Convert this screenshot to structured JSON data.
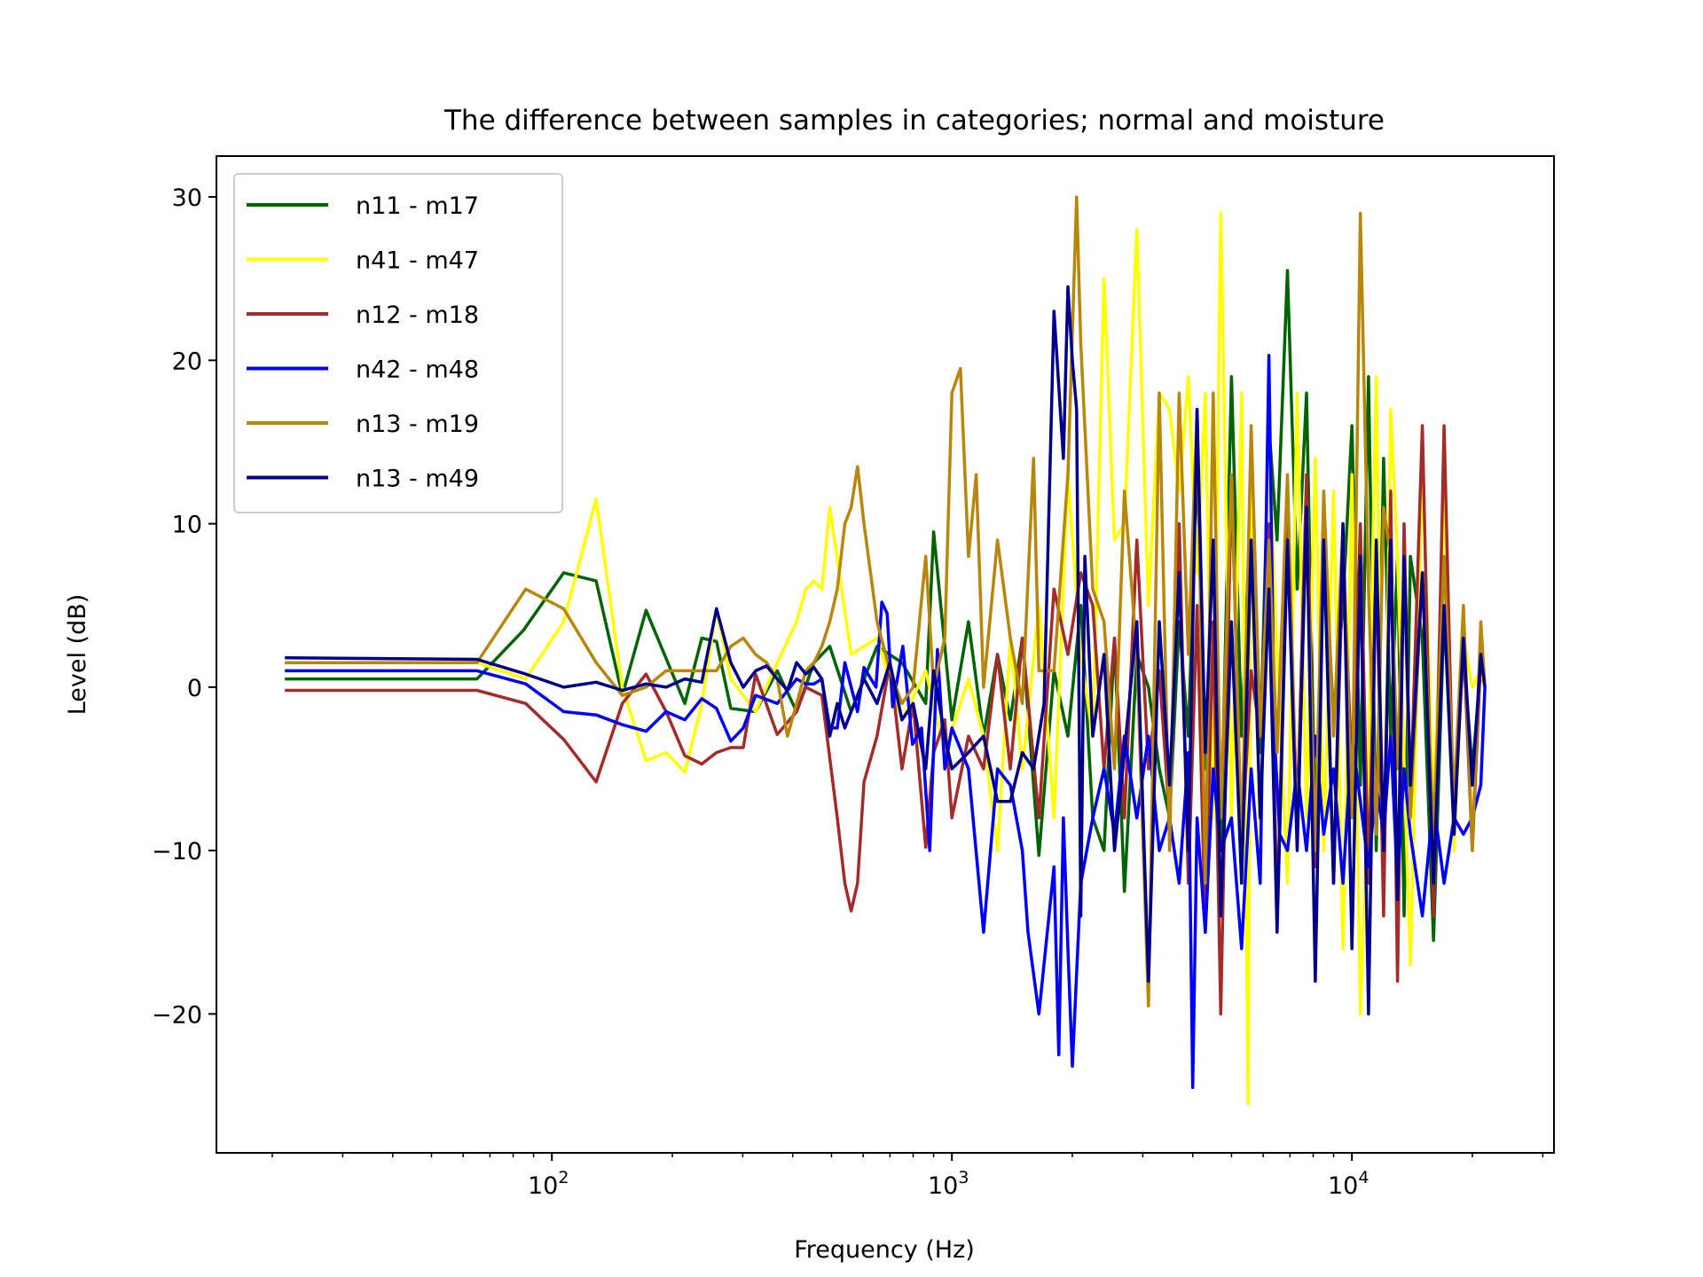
{
  "chart_data": {
    "type": "line",
    "title": "The difference between samples in categories; normal and moisture",
    "xlabel": "Frequency (Hz)",
    "ylabel": "Level (dB)",
    "xscale": "log",
    "xlim": [
      14.5,
      32000
    ],
    "ylim": [
      -28.5,
      32.5
    ],
    "xticks_major": [
      {
        "base": "10",
        "exp": "2"
      },
      {
        "base": "10",
        "exp": "3"
      },
      {
        "base": "10",
        "exp": "4"
      }
    ],
    "yticks": [
      30,
      20,
      10,
      0,
      -10,
      -20
    ],
    "ytick_labels": [
      "30",
      "20",
      "10",
      "0",
      "−10",
      "−20"
    ],
    "grid": false,
    "legend": "upper left",
    "series": [
      {
        "name": "n11 - m17",
        "color": "#006400",
        "x": [
          21.5,
          65,
          85,
          107,
          129,
          150,
          172,
          215,
          237,
          258,
          280,
          323,
          366,
          409,
          452,
          495,
          560,
          650,
          750,
          860,
          900,
          1000,
          1100,
          1200,
          1300,
          1400,
          1500,
          1650,
          1800,
          1950,
          2100,
          2250,
          2400,
          2550,
          2700,
          2900,
          3100,
          3300,
          3500,
          3700,
          3900,
          4100,
          4300,
          4500,
          4700,
          5000,
          5300,
          5600,
          5900,
          6200,
          6500,
          6900,
          7300,
          7700,
          8100,
          8500,
          9000,
          9500,
          10000,
          10500,
          11000,
          11500,
          12000,
          12500,
          13000,
          13500,
          14000,
          15000,
          16000,
          17000,
          18000,
          19000,
          20000,
          21000,
          21500
        ],
        "y": [
          0.5,
          0.5,
          3.5,
          7,
          6.5,
          -0.5,
          4.7,
          -1,
          3,
          2.8,
          -1.3,
          -1.5,
          1,
          -1.5,
          1.5,
          2.5,
          -1.5,
          2.5,
          1.5,
          -1,
          9.5,
          -2,
          4,
          -3,
          2,
          -2,
          3,
          -10.3,
          1,
          -3,
          5,
          -8,
          -10,
          3,
          -12.5,
          2,
          0,
          -5,
          -8,
          4,
          -3,
          14,
          -5,
          2,
          -10,
          19,
          -3,
          12,
          -4,
          16,
          9,
          25.5,
          6,
          18,
          -9,
          10,
          -2,
          5,
          16,
          -6,
          19,
          -10,
          14,
          -3,
          8,
          -14,
          8,
          3,
          -15.5,
          4.5,
          -7,
          2,
          -5,
          1,
          0
        ]
      },
      {
        "name": "n41 - m47",
        "color": "#ffff00",
        "x": [
          21.5,
          65,
          86,
          107,
          129,
          150,
          172,
          193,
          215,
          237,
          258,
          280,
          323,
          366,
          409,
          431,
          452,
          473,
          495,
          560,
          650,
          750,
          860,
          960,
          1100,
          1200,
          1300,
          1400,
          1500,
          1650,
          1800,
          1950,
          2100,
          2250,
          2400,
          2550,
          2700,
          2900,
          3100,
          3300,
          3500,
          3700,
          3900,
          4100,
          4300,
          4500,
          4700,
          5000,
          5300,
          5500,
          5600,
          5900,
          6200,
          6500,
          6900,
          7300,
          7700,
          8100,
          8500,
          9000,
          9500,
          10000,
          10500,
          11000,
          11500,
          12000,
          12500,
          13000,
          14000,
          15000,
          16000,
          17000,
          18000,
          19000,
          20000,
          21000,
          21500
        ],
        "y": [
          1.5,
          1.5,
          0.5,
          4,
          11.5,
          0,
          -4.5,
          -4,
          -5.2,
          -1,
          4.8,
          0.5,
          -1.5,
          1.5,
          4,
          6,
          6.5,
          6,
          11,
          2,
          3,
          -2,
          1,
          -4,
          0.5,
          -3,
          -10,
          3,
          -5,
          5,
          -8,
          13,
          2,
          -3,
          25,
          9,
          10,
          28,
          5,
          18,
          17,
          12,
          19,
          7,
          18,
          -8,
          29,
          -8,
          18,
          -25.5,
          12,
          -10,
          15,
          2,
          -12,
          18,
          -8,
          14,
          -10,
          12,
          -16,
          13,
          -20,
          -5,
          19,
          -14,
          17,
          8,
          -17,
          14,
          -8,
          12,
          -10,
          3,
          0,
          1,
          0
        ]
      },
      {
        "name": "n12 - m18",
        "color": "#a52a2a",
        "x": [
          21.5,
          65,
          86,
          107,
          129,
          150,
          172,
          193,
          215,
          237,
          258,
          280,
          301,
          323,
          366,
          409,
          431,
          473,
          517,
          540,
          560,
          581,
          603,
          650,
          700,
          750,
          800,
          860,
          900,
          960,
          1000,
          1100,
          1200,
          1300,
          1400,
          1500,
          1650,
          1800,
          1950,
          2100,
          2250,
          2400,
          2550,
          2700,
          2900,
          3100,
          3300,
          3500,
          3700,
          3900,
          4100,
          4300,
          4500,
          4700,
          5000,
          5300,
          5600,
          5900,
          6200,
          6500,
          6900,
          7300,
          7700,
          8100,
          8500,
          9000,
          9500,
          10000,
          10500,
          11000,
          11500,
          12000,
          12500,
          13000,
          13500,
          14000,
          15000,
          16000,
          17000,
          18000,
          19000,
          20000,
          21000,
          21500
        ],
        "y": [
          -0.2,
          -0.2,
          -1,
          -3.2,
          -5.8,
          -1,
          0.8,
          -1.5,
          -4.2,
          -4.7,
          -4,
          -3.7,
          -3.7,
          0.8,
          -2.9,
          -1.5,
          0,
          -0.5,
          -8,
          -12,
          -13.7,
          -12,
          -5.8,
          -3,
          1.5,
          -5,
          -1,
          -9.8,
          -4,
          -2,
          -8,
          -3,
          -5,
          2,
          -5,
          3,
          -8,
          6,
          2,
          7,
          5,
          -5,
          3,
          -8,
          9,
          -5,
          1,
          -8,
          10,
          -12,
          5,
          -15,
          4,
          -20,
          13,
          -10,
          1,
          -3,
          10,
          -14,
          10,
          -8,
          13,
          -11,
          10,
          -12,
          8,
          -5,
          10,
          -12,
          8,
          -14,
          12,
          -18,
          10,
          -7,
          16,
          -14,
          16,
          -9,
          3,
          -10,
          2,
          0
        ]
      },
      {
        "name": "n42 - m48",
        "color": "#0000ff",
        "x": [
          21.5,
          65,
          86,
          107,
          129,
          150,
          172,
          193,
          215,
          237,
          258,
          280,
          301,
          323,
          366,
          409,
          431,
          452,
          473,
          495,
          517,
          540,
          581,
          603,
          646,
          668,
          689,
          711,
          754,
          797,
          840,
          880,
          920,
          960,
          1000,
          1100,
          1200,
          1300,
          1400,
          1500,
          1550,
          1650,
          1800,
          1850,
          1900,
          1950,
          2000,
          2100,
          2250,
          2400,
          2550,
          2700,
          2900,
          3100,
          3300,
          3500,
          3700,
          3900,
          4000,
          4100,
          4300,
          4500,
          4700,
          5000,
          5300,
          5600,
          5900,
          6200,
          6400,
          6600,
          6900,
          7300,
          7700,
          8100,
          8500,
          9000,
          9500,
          10000,
          10500,
          11000,
          11500,
          12000,
          12500,
          13000,
          13500,
          14000,
          15000,
          16000,
          17000,
          18000,
          19000,
          20000,
          21000,
          21500
        ],
        "y": [
          1,
          1,
          0.2,
          -1.5,
          -1.7,
          -2.3,
          -2.7,
          -1.5,
          -2,
          -0.7,
          -1.3,
          -3.3,
          -2.5,
          -0.5,
          -1,
          0.5,
          0.2,
          0.2,
          0.5,
          -2.5,
          -2.5,
          1.5,
          -1.5,
          1.2,
          0,
          5.2,
          4.5,
          -1.2,
          2.5,
          -3.5,
          -2.5,
          -10,
          2.3,
          -5,
          -2.5,
          -5,
          -15,
          -5,
          -6,
          -10,
          -15,
          -20,
          -11,
          -22.5,
          -8,
          -16,
          -23.2,
          -12,
          -8,
          -5,
          -9,
          -3,
          -8,
          -3,
          -10,
          -8,
          -12,
          -4,
          -24.5,
          -8,
          -15,
          -5,
          -10,
          -8,
          -16,
          -5,
          -12,
          20.3,
          -3,
          -9,
          -10,
          -5,
          -10,
          -3,
          -9,
          -5,
          -12,
          -3,
          -7,
          -11,
          -6,
          -9,
          -3,
          -12,
          -5,
          -9,
          -14,
          -7,
          -12,
          -8,
          -9,
          -8,
          -6,
          0
        ]
      },
      {
        "name": "n13 - m19",
        "color": "#b8860b",
        "x": [
          21.5,
          65,
          86,
          107,
          129,
          150,
          172,
          193,
          215,
          258,
          280,
          301,
          323,
          344,
          366,
          388,
          409,
          431,
          452,
          473,
          495,
          517,
          540,
          560,
          581,
          603,
          650,
          700,
          750,
          800,
          860,
          900,
          960,
          1000,
          1050,
          1100,
          1150,
          1200,
          1300,
          1400,
          1500,
          1600,
          1650,
          1800,
          1950,
          2050,
          2100,
          2250,
          2400,
          2550,
          2700,
          2900,
          3100,
          3300,
          3500,
          3700,
          3900,
          4100,
          4300,
          4500,
          4700,
          5000,
          5300,
          5600,
          5900,
          6200,
          6500,
          6900,
          7300,
          7700,
          8100,
          8500,
          9000,
          9500,
          10000,
          10500,
          11000,
          11500,
          12000,
          12500,
          13000,
          13500,
          14000,
          15000,
          16000,
          17000,
          18000,
          19000,
          20000,
          21000,
          21500
        ],
        "y": [
          1.5,
          1.5,
          6,
          4.8,
          1.5,
          -0.5,
          0,
          1,
          1,
          1,
          2.5,
          3,
          2,
          1.5,
          0.5,
          -3,
          -1,
          1,
          1.5,
          2.5,
          4,
          6,
          10,
          11,
          13.5,
          10,
          4,
          1,
          -1,
          0,
          8,
          0,
          3,
          18,
          19.5,
          8,
          13,
          0,
          9,
          3,
          -1,
          14,
          1,
          1,
          13,
          30,
          21,
          6,
          4,
          -5,
          12,
          2,
          -19.5,
          18,
          -10,
          18,
          2,
          17,
          -12,
          18,
          -8,
          13,
          -10,
          16,
          -3,
          9,
          -4,
          13,
          -9,
          10,
          -10,
          12,
          -3,
          10,
          -8,
          29,
          6,
          -9,
          11,
          8,
          -5,
          8,
          -8,
          7,
          -9,
          8,
          -7,
          5,
          -10,
          4,
          0
        ]
      },
      {
        "name": "n13 - m49",
        "color": "#00008b",
        "x": [
          21.5,
          65,
          86,
          107,
          129,
          150,
          172,
          193,
          215,
          237,
          258,
          280,
          301,
          323,
          344,
          366,
          388,
          409,
          431,
          452,
          473,
          495,
          517,
          540,
          560,
          581,
          603,
          650,
          700,
          750,
          800,
          860,
          900,
          960,
          1000,
          1100,
          1200,
          1300,
          1400,
          1500,
          1600,
          1700,
          1800,
          1900,
          1950,
          2000,
          2050,
          2100,
          2150,
          2250,
          2400,
          2550,
          2700,
          2900,
          3100,
          3300,
          3500,
          3700,
          3900,
          4100,
          4300,
          4500,
          4700,
          5000,
          5300,
          5600,
          5900,
          6200,
          6500,
          6900,
          7300,
          7700,
          8100,
          8500,
          9000,
          9500,
          10000,
          10500,
          11000,
          11500,
          12000,
          12500,
          13000,
          13500,
          14000,
          15000,
          16000,
          17000,
          18000,
          19000,
          20000,
          21000,
          21500
        ],
        "y": [
          1.8,
          1.7,
          0.8,
          0,
          0.3,
          -0.2,
          0.2,
          0,
          0.5,
          0.3,
          4.8,
          1.5,
          0,
          1,
          1.3,
          0.5,
          -0.2,
          1.5,
          0.8,
          1.2,
          0.5,
          -3,
          -1,
          -2.5,
          -1.5,
          -0.5,
          0.5,
          -1,
          1.5,
          -2,
          -1,
          -5,
          1,
          -3,
          -5,
          -4,
          -3,
          -7,
          -7,
          -4,
          -5,
          -1,
          23,
          14,
          24.5,
          20,
          17,
          -14,
          8,
          -3,
          2,
          -10,
          -4,
          4,
          -18,
          4,
          -6,
          7,
          -10,
          17,
          -4,
          9,
          -14,
          4,
          -12,
          9,
          -8,
          6,
          -15,
          9,
          -10,
          11,
          -18,
          9,
          -12,
          10,
          -16,
          8,
          -20,
          9,
          -10,
          9,
          -13,
          8,
          -6,
          7,
          -12,
          5,
          -9,
          3,
          -6,
          2,
          0
        ]
      }
    ]
  }
}
